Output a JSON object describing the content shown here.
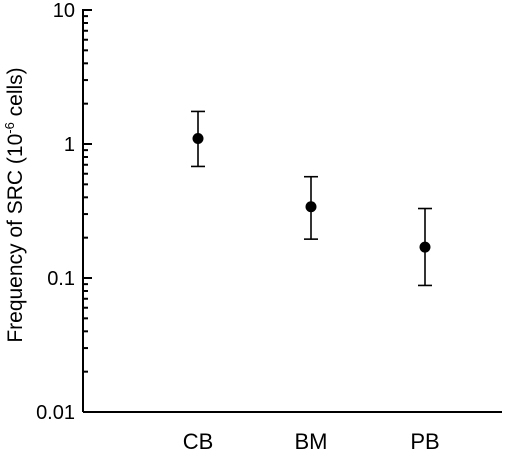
{
  "chart_data": {
    "type": "scatter",
    "title": "",
    "ylabel": {
      "prefix": "Frequency of SRC (10",
      "sup": "-6",
      "suffix": " cells)"
    },
    "xlabel": "",
    "yscale": "log",
    "ylim": [
      0.01,
      10
    ],
    "yticks": [
      {
        "value": 10,
        "label": "10"
      },
      {
        "value": 1,
        "label": "1"
      },
      {
        "value": 0.1,
        "label": "0.1"
      },
      {
        "value": 0.01,
        "label": "0.01"
      }
    ],
    "categories": [
      "CB",
      "BM",
      "PB"
    ],
    "values": [
      1.1,
      0.34,
      0.17
    ],
    "error_low": [
      0.68,
      0.195,
      0.088
    ],
    "error_high": [
      1.75,
      0.57,
      0.33
    ],
    "grid": false,
    "legend": "none"
  }
}
